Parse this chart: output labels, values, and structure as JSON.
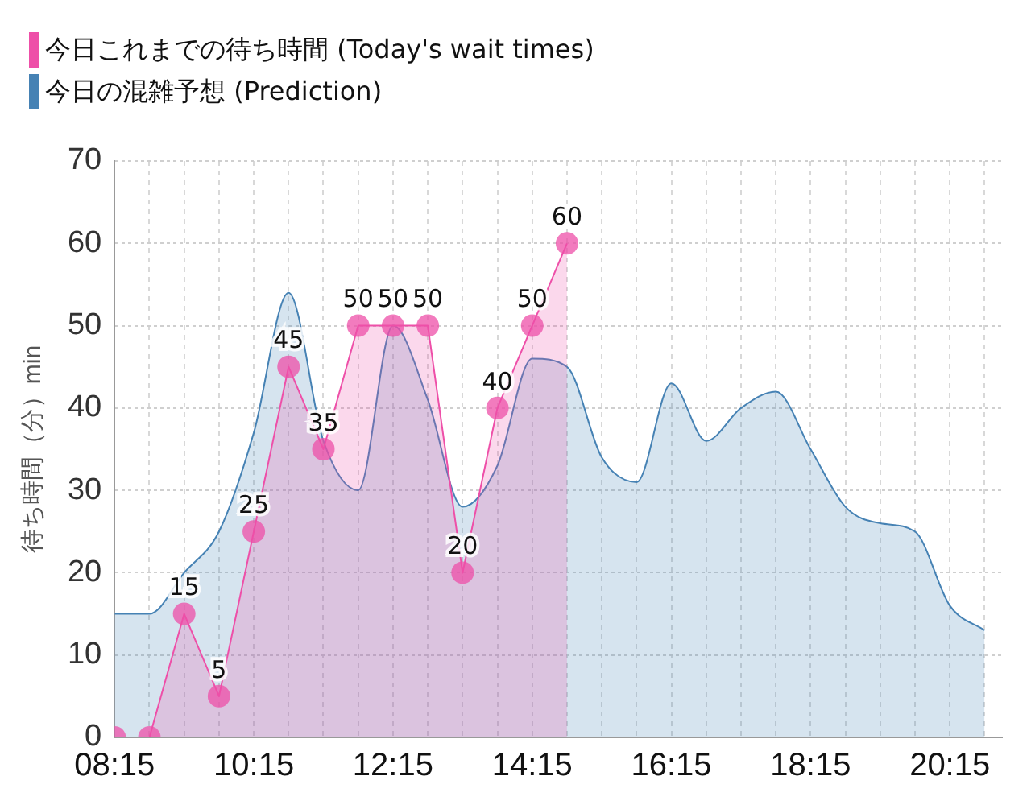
{
  "chart_data": {
    "type": "area",
    "ylabel": "待ち時間（分）min",
    "legend": "top left",
    "grid": true,
    "marker": "circle",
    "xlim": [
      8.25,
      21
    ],
    "ylim": [
      0,
      70
    ],
    "yticks": [
      0,
      10,
      20,
      30,
      40,
      50,
      60,
      70
    ],
    "xticks": [
      {
        "value": 8.25,
        "label": "08:15"
      },
      {
        "value": 8.75,
        "label": null
      },
      {
        "value": 9.25,
        "label": null
      },
      {
        "value": 9.75,
        "label": null
      },
      {
        "value": 10.25,
        "label": "10:15"
      },
      {
        "value": 10.75,
        "label": null
      },
      {
        "value": 11.25,
        "label": null
      },
      {
        "value": 11.75,
        "label": null
      },
      {
        "value": 12.25,
        "label": "12:15"
      },
      {
        "value": 12.75,
        "label": null
      },
      {
        "value": 13.25,
        "label": null
      },
      {
        "value": 13.75,
        "label": null
      },
      {
        "value": 14.25,
        "label": "14:15"
      },
      {
        "value": 14.75,
        "label": null
      },
      {
        "value": 15.25,
        "label": null
      },
      {
        "value": 15.75,
        "label": null
      },
      {
        "value": 16.25,
        "label": "16:15"
      },
      {
        "value": 16.75,
        "label": null
      },
      {
        "value": 17.25,
        "label": null
      },
      {
        "value": 17.75,
        "label": null
      },
      {
        "value": 18.25,
        "label": "18:15"
      },
      {
        "value": 18.75,
        "label": null
      },
      {
        "value": 19.25,
        "label": null
      },
      {
        "value": 19.75,
        "label": null
      },
      {
        "value": 20.25,
        "label": "20:15"
      },
      {
        "value": 20.75,
        "label": null
      }
    ],
    "series": [
      {
        "name": "今日これまでの待ち時間 (Today's wait times)",
        "color": "#ee4fa8",
        "x": [
          8.25,
          8.75,
          9.25,
          9.75,
          10.25,
          10.75,
          11.25,
          11.75,
          12.25,
          12.75,
          13.25,
          13.75,
          14.25,
          14.75
        ],
        "values": [
          0,
          0,
          15,
          5,
          25,
          45,
          35,
          50,
          50,
          50,
          20,
          40,
          50,
          60
        ],
        "value_labels": [
          null,
          null,
          "15",
          "5",
          "25",
          "45",
          "35",
          "50",
          "50",
          "50",
          "20",
          "40",
          "50",
          "60"
        ]
      },
      {
        "name": "今日の混雑予想 (Prediction)",
        "color": "#4682b4",
        "marker": "none",
        "x": [
          8.25,
          8.75,
          9.25,
          9.75,
          10.25,
          10.75,
          11.25,
          11.75,
          12.25,
          12.75,
          13.25,
          13.75,
          14.25,
          14.75,
          15.25,
          15.75,
          16.25,
          16.75,
          17.25,
          17.75,
          18.25,
          18.75,
          19.25,
          19.75,
          20.25,
          20.75
        ],
        "values": [
          15,
          15,
          20,
          25,
          37,
          54,
          36,
          30,
          50,
          41,
          28,
          33,
          46,
          45,
          34,
          31,
          43,
          36,
          40,
          42,
          35,
          28,
          26,
          25,
          16,
          13
        ]
      }
    ]
  }
}
